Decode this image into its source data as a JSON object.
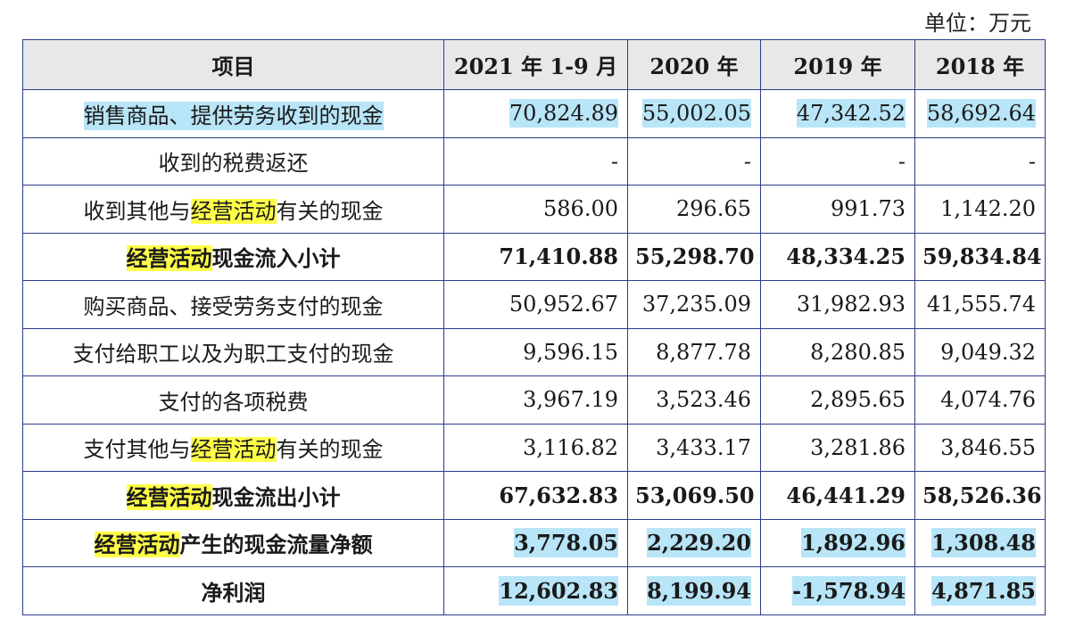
{
  "unit_label": "单位：万元",
  "header": {
    "item": "项目",
    "col1": "2021 年 1-9 月",
    "col2": "2020 年",
    "col3": "2019 年",
    "col4": "2018 年"
  },
  "rows": [
    {
      "label_pre": "销售商品、提供劳务收到的现金",
      "label_hl": "",
      "label_post": "",
      "values": [
        "70,824.89",
        "55,002.05",
        "47,342.52",
        "58,692.64"
      ]
    },
    {
      "label_pre": "收到的税费返还",
      "label_hl": "",
      "label_post": "",
      "values": [
        "-",
        "-",
        "-",
        "-"
      ]
    },
    {
      "label_pre": "收到其他与",
      "label_hl": "经营活动",
      "label_post": "有关的现金",
      "values": [
        "586.00",
        "296.65",
        "991.73",
        "1,142.20"
      ]
    },
    {
      "label_pre": "",
      "label_hl": "经营活动",
      "label_post": "现金流入小计",
      "values": [
        "71,410.88",
        "55,298.70",
        "48,334.25",
        "59,834.84"
      ]
    },
    {
      "label_pre": "购买商品、接受劳务支付的现金",
      "label_hl": "",
      "label_post": "",
      "values": [
        "50,952.67",
        "37,235.09",
        "31,982.93",
        "41,555.74"
      ]
    },
    {
      "label_pre": "支付给职工以及为职工支付的现金",
      "label_hl": "",
      "label_post": "",
      "values": [
        "9,596.15",
        "8,877.78",
        "8,280.85",
        "9,049.32"
      ]
    },
    {
      "label_pre": "支付的各项税费",
      "label_hl": "",
      "label_post": "",
      "values": [
        "3,967.19",
        "3,523.46",
        "2,895.65",
        "4,074.76"
      ]
    },
    {
      "label_pre": "支付其他与",
      "label_hl": "经营活动",
      "label_post": "有关的现金",
      "values": [
        "3,116.82",
        "3,433.17",
        "3,281.86",
        "3,846.55"
      ]
    },
    {
      "label_pre": "",
      "label_hl": "经营活动",
      "label_post": "现金流出小计",
      "values": [
        "67,632.83",
        "53,069.50",
        "46,441.29",
        "58,526.36"
      ]
    },
    {
      "label_pre": "",
      "label_hl": "经营活动",
      "label_post": "产生的现金流量净额",
      "values": [
        "3,778.05",
        "2,229.20",
        "1,892.96",
        "1,308.48"
      ]
    },
    {
      "label_pre": "净利润",
      "label_hl": "",
      "label_post": "",
      "values": [
        "12,602.83",
        "8,199.94",
        "-1,578.94",
        "4,871.85"
      ]
    }
  ],
  "highlight_colors": {
    "blue": "#b8e5f7",
    "yellow": "#ffff4a",
    "border": "#2c3a8a",
    "header_bg": "#e8e8e8"
  }
}
